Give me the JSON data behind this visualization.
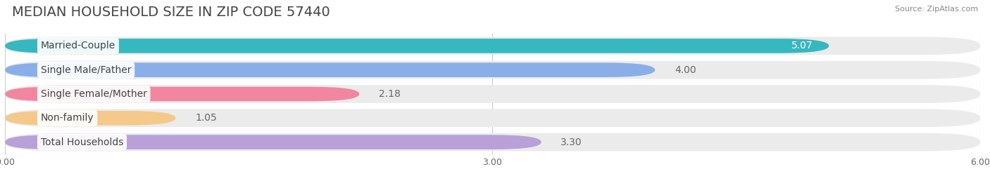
{
  "title": "MEDIAN HOUSEHOLD SIZE IN ZIP CODE 57440",
  "source": "Source: ZipAtlas.com",
  "categories": [
    "Married-Couple",
    "Single Male/Father",
    "Single Female/Mother",
    "Non-family",
    "Total Households"
  ],
  "values": [
    5.07,
    4.0,
    2.18,
    1.05,
    3.3
  ],
  "bar_colors": [
    "#35b8c0",
    "#8aaee8",
    "#f286a0",
    "#f5c98a",
    "#b8a0d8"
  ],
  "bg_row_color": "#ebebeb",
  "value_colors": [
    "white",
    "white",
    "#666666",
    "#666666",
    "#666666"
  ],
  "xlim": [
    0,
    6.0
  ],
  "xticks": [
    0.0,
    3.0,
    6.0
  ],
  "xtick_labels": [
    "0.00",
    "3.00",
    "6.00"
  ],
  "title_fontsize": 14,
  "label_fontsize": 10,
  "value_fontsize": 10,
  "background_color": "#ffffff"
}
